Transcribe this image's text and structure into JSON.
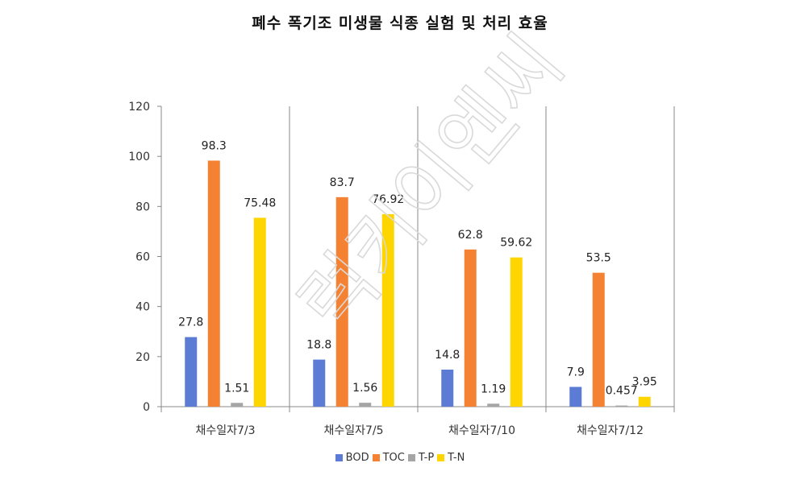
{
  "chart_data": {
    "type": "bar",
    "title": "폐수 폭기조 미생물 식종 실험 및 처리 효율",
    "xlabel": "",
    "ylabel": "",
    "ylim": [
      0,
      120
    ],
    "yticks": [
      0,
      20,
      40,
      60,
      80,
      100,
      120
    ],
    "categories": [
      "채수일자7/3",
      "채수일자7/5",
      "채수일자7/10",
      "채수일자7/12"
    ],
    "series": [
      {
        "name": "BOD",
        "color": "#5B7BD5",
        "values": [
          27.8,
          18.8,
          14.8,
          7.9
        ],
        "labels": [
          "27.8",
          "18.8",
          "14.8",
          "7.9"
        ]
      },
      {
        "name": "TOC",
        "color": "#F58232",
        "values": [
          98.3,
          83.7,
          62.8,
          53.5
        ],
        "labels": [
          "98.3",
          "83.7",
          "62.8",
          "53.5"
        ]
      },
      {
        "name": "T-P",
        "color": "#A5A5A5",
        "values": [
          1.51,
          1.56,
          1.19,
          0.457
        ],
        "labels": [
          "1.51",
          "1.56",
          "1.19",
          "0.457"
        ]
      },
      {
        "name": "T-N",
        "color": "#FFD500",
        "values": [
          75.48,
          76.92,
          59.62,
          3.95
        ],
        "labels": [
          "75.48",
          "76.92",
          "59.62",
          "3.95"
        ]
      }
    ],
    "grid": false,
    "legend_position": "bottom"
  },
  "watermark": "럭키이엔씨"
}
